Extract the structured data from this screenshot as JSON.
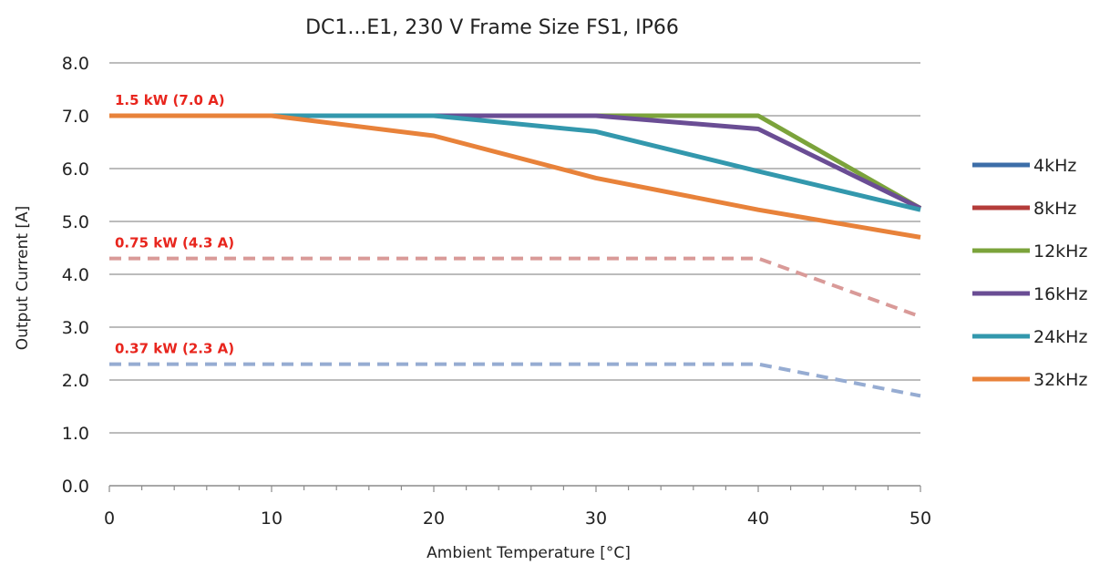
{
  "chart_data": {
    "type": "line",
    "title": "DC1...E1, 230 V Frame Size FS1, IP66",
    "xlabel": "Ambient Temperature [°C]",
    "ylabel": "Output Current [A]",
    "xlim": [
      0,
      50
    ],
    "ylim": [
      0,
      8
    ],
    "xticks": [
      0,
      10,
      20,
      30,
      40,
      50
    ],
    "yticks": [
      "0.0",
      "1.0",
      "2.0",
      "3.0",
      "4.0",
      "5.0",
      "6.0",
      "7.0",
      "8.0"
    ],
    "grid": "horizontal",
    "legend_position": "right",
    "legend": [
      {
        "name": "4kHz",
        "color": "#3c6ea8"
      },
      {
        "name": "8kHz",
        "color": "#b43c3a"
      },
      {
        "name": "12kHz",
        "color": "#7ba33b"
      },
      {
        "name": "16kHz",
        "color": "#6a4d94"
      },
      {
        "name": "24kHz",
        "color": "#3398ad"
      },
      {
        "name": "32kHz",
        "color": "#e8823a"
      }
    ],
    "series": [
      {
        "name": "12kHz",
        "color": "#7ba33b",
        "style": "solid",
        "x": [
          0,
          10,
          20,
          30,
          40,
          50
        ],
        "y": [
          7.0,
          7.0,
          7.0,
          7.0,
          7.0,
          5.25
        ]
      },
      {
        "name": "16kHz",
        "color": "#6a4d94",
        "style": "solid",
        "x": [
          0,
          10,
          20,
          30,
          40,
          50
        ],
        "y": [
          7.0,
          7.0,
          7.0,
          7.0,
          6.75,
          5.25
        ]
      },
      {
        "name": "24kHz",
        "color": "#3398ad",
        "style": "solid",
        "x": [
          0,
          10,
          20,
          30,
          40,
          50
        ],
        "y": [
          7.0,
          7.0,
          7.0,
          6.7,
          5.95,
          5.22
        ]
      },
      {
        "name": "32kHz",
        "color": "#e8823a",
        "style": "solid",
        "x": [
          0,
          10,
          20,
          30,
          40,
          50
        ],
        "y": [
          7.0,
          7.0,
          6.62,
          5.82,
          5.22,
          4.7
        ]
      },
      {
        "color": "#d99a98",
        "style": "dashed",
        "x": [
          0,
          10,
          20,
          30,
          40,
          50
        ],
        "y": [
          4.3,
          4.3,
          4.3,
          4.3,
          4.3,
          3.2
        ]
      },
      {
        "color": "#96acd2",
        "style": "dashed",
        "x": [
          0,
          10,
          20,
          30,
          40,
          50
        ],
        "y": [
          2.3,
          2.3,
          2.3,
          2.3,
          2.3,
          1.7
        ]
      }
    ],
    "annotations": [
      {
        "text": "1.5 kW (7.0 A)",
        "x": 0,
        "y": 7.0
      },
      {
        "text": "0.75 kW (4.3 A)",
        "x": 0,
        "y": 4.3
      },
      {
        "text": "0.37 kW (2.3 A)",
        "x": 0,
        "y": 2.3
      }
    ]
  }
}
